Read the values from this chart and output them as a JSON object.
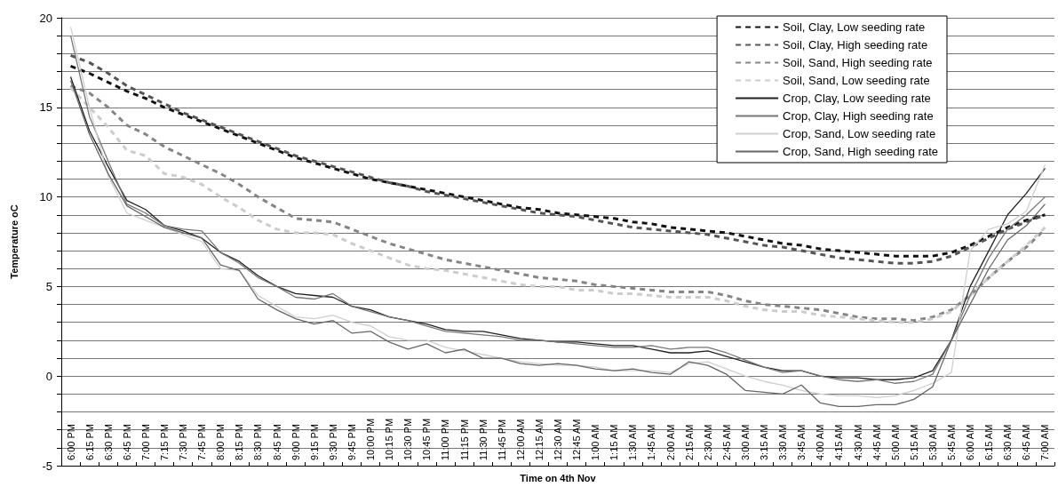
{
  "chart_data": {
    "type": "line",
    "xlabel": "Time on 4th Nov",
    "ylabel": "Temperature oC",
    "categories": [
      "6:00 PM",
      "6:15 PM",
      "6:30 PM",
      "6:45 PM",
      "7:00 PM",
      "7:15 PM",
      "7:30 PM",
      "7:45 PM",
      "8:00 PM",
      "8:15 PM",
      "8:30 PM",
      "8:45 PM",
      "9:00 PM",
      "9:15 PM",
      "9:30 PM",
      "9:45 PM",
      "10:00 PM",
      "10:15 PM",
      "10:30 PM",
      "10:45 PM",
      "11:00 PM",
      "11:15 PM",
      "11:30 PM",
      "11:45 PM",
      "12:00 AM",
      "12:15 AM",
      "12:30 AM",
      "12:45 AM",
      "1:00 AM",
      "1:15 AM",
      "1:30 AM",
      "1:45 AM",
      "2:00 AM",
      "2:15 AM",
      "2:30 AM",
      "2:45 AM",
      "3:00 AM",
      "3:15 AM",
      "3:30 AM",
      "3:45 AM",
      "4:00 AM",
      "4:15 AM",
      "4:30 AM",
      "4:45 AM",
      "5:00 AM",
      "5:15 AM",
      "5:30 AM",
      "5:45 AM",
      "6:00 AM",
      "6:15 AM",
      "6:30 AM",
      "6:45 AM",
      "7:00 AM"
    ],
    "series": [
      {
        "name": "Soil, Clay, Low seeding rate",
        "color": "#111111",
        "line_style": "dashed",
        "values": [
          17.3,
          16.9,
          16.4,
          15.9,
          15.5,
          15.0,
          14.6,
          14.2,
          13.8,
          13.4,
          13.0,
          12.6,
          12.2,
          11.9,
          11.6,
          11.3,
          11.0,
          10.8,
          10.6,
          10.4,
          10.2,
          10.0,
          9.8,
          9.6,
          9.4,
          9.3,
          9.1,
          9.0,
          8.9,
          8.8,
          8.6,
          8.5,
          8.3,
          8.2,
          8.1,
          8.0,
          7.8,
          7.6,
          7.4,
          7.3,
          7.1,
          7.0,
          6.9,
          6.8,
          6.7,
          6.7,
          6.7,
          6.9,
          7.3,
          7.8,
          8.3,
          8.7,
          9.0
        ]
      },
      {
        "name": "Soil, Clay, High seeding rate",
        "color": "#555555",
        "line_style": "dashed",
        "values": [
          17.9,
          17.5,
          16.9,
          16.2,
          15.7,
          15.2,
          14.7,
          14.3,
          13.9,
          13.5,
          13.1,
          12.7,
          12.3,
          12.0,
          11.7,
          11.4,
          11.1,
          10.8,
          10.6,
          10.3,
          10.1,
          9.9,
          9.7,
          9.5,
          9.3,
          9.1,
          9.0,
          8.9,
          8.7,
          8.5,
          8.3,
          8.2,
          8.1,
          8.0,
          7.9,
          7.7,
          7.5,
          7.3,
          7.2,
          7.0,
          6.8,
          6.6,
          6.5,
          6.4,
          6.3,
          6.3,
          6.4,
          6.7,
          7.2,
          7.7,
          8.2,
          8.6,
          9.0
        ]
      },
      {
        "name": "Soil, Sand, High seeding rate",
        "color": "#858585",
        "line_style": "dashed",
        "values": [
          16.2,
          15.8,
          15.0,
          14.0,
          13.5,
          12.8,
          12.3,
          11.8,
          11.3,
          10.7,
          10.0,
          9.4,
          8.8,
          8.7,
          8.6,
          8.2,
          7.8,
          7.4,
          7.1,
          6.8,
          6.5,
          6.3,
          6.1,
          5.9,
          5.7,
          5.5,
          5.4,
          5.3,
          5.1,
          5.0,
          4.9,
          4.8,
          4.7,
          4.7,
          4.7,
          4.5,
          4.2,
          4.0,
          3.9,
          3.8,
          3.7,
          3.5,
          3.3,
          3.2,
          3.2,
          3.1,
          3.3,
          3.7,
          4.5,
          5.5,
          6.4,
          7.2,
          8.2
        ]
      },
      {
        "name": "Soil, Sand, Low seeding rate",
        "color": "#cccccc",
        "line_style": "dashed",
        "values": [
          16.1,
          15.0,
          13.9,
          12.6,
          12.3,
          11.3,
          11.1,
          10.7,
          10.0,
          9.4,
          8.7,
          8.2,
          8.0,
          8.0,
          7.9,
          7.4,
          7.0,
          6.6,
          6.2,
          6.0,
          5.9,
          5.7,
          5.5,
          5.3,
          5.1,
          5.0,
          5.0,
          4.8,
          4.8,
          4.6,
          4.6,
          4.5,
          4.4,
          4.4,
          4.4,
          4.2,
          3.9,
          3.7,
          3.6,
          3.6,
          3.4,
          3.3,
          3.2,
          3.1,
          3.0,
          3.0,
          3.2,
          3.6,
          4.5,
          5.5,
          6.4,
          7.3,
          8.3
        ]
      },
      {
        "name": "Crop, Clay, Low seeding rate",
        "color": "#222222",
        "line_style": "solid",
        "values": [
          16.7,
          13.7,
          11.7,
          9.8,
          9.3,
          8.4,
          8.1,
          7.7,
          6.9,
          6.4,
          5.6,
          5.0,
          4.6,
          4.5,
          4.4,
          3.9,
          3.7,
          3.3,
          3.1,
          2.9,
          2.6,
          2.5,
          2.5,
          2.3,
          2.1,
          2.0,
          1.9,
          1.9,
          1.8,
          1.7,
          1.7,
          1.5,
          1.3,
          1.3,
          1.4,
          1.1,
          0.8,
          0.5,
          0.3,
          0.3,
          0.0,
          -0.1,
          -0.1,
          -0.2,
          -0.2,
          -0.1,
          0.3,
          2.0,
          5.0,
          7.0,
          9.0,
          10.2,
          11.6
        ]
      },
      {
        "name": "Crop, Clay, High seeding rate",
        "color": "#777777",
        "line_style": "solid",
        "values": [
          19.0,
          14.5,
          12.0,
          9.6,
          9.1,
          8.4,
          8.2,
          8.1,
          6.9,
          6.3,
          5.5,
          5.0,
          4.4,
          4.3,
          4.6,
          3.9,
          3.6,
          3.3,
          3.1,
          2.8,
          2.5,
          2.4,
          2.3,
          2.2,
          2.0,
          2.0,
          1.9,
          1.8,
          1.7,
          1.6,
          1.6,
          1.7,
          1.5,
          1.6,
          1.6,
          1.3,
          0.9,
          0.5,
          0.2,
          0.3,
          0.0,
          -0.2,
          -0.3,
          -0.2,
          -0.4,
          -0.3,
          0.1,
          2.0,
          4.5,
          6.6,
          8.2,
          9.0,
          10.0
        ]
      },
      {
        "name": "Crop, Sand, Low seeding rate",
        "color": "#cfcfcf",
        "line_style": "solid",
        "values": [
          19.5,
          15.0,
          11.2,
          9.1,
          8.7,
          8.3,
          7.9,
          7.5,
          6.0,
          5.9,
          4.5,
          3.9,
          3.3,
          3.2,
          3.4,
          3.0,
          2.8,
          2.2,
          2.0,
          2.0,
          1.6,
          1.4,
          1.2,
          1.0,
          0.8,
          0.7,
          0.6,
          0.6,
          0.5,
          0.3,
          0.3,
          0.3,
          0.2,
          0.7,
          0.8,
          0.4,
          0.0,
          -0.3,
          -0.5,
          -0.8,
          -1.0,
          -1.1,
          -1.1,
          -1.2,
          -1.1,
          -0.8,
          -0.4,
          0.2,
          7.0,
          8.2,
          8.5,
          9.2,
          11.8
        ]
      },
      {
        "name": "Crop, Sand, High seeding rate",
        "color": "#666666",
        "line_style": "solid",
        "values": [
          16.5,
          13.5,
          11.3,
          9.5,
          8.9,
          8.3,
          8.0,
          7.7,
          6.2,
          5.9,
          4.3,
          3.7,
          3.2,
          2.9,
          3.1,
          2.4,
          2.5,
          1.9,
          1.5,
          1.8,
          1.3,
          1.5,
          1.0,
          1.0,
          0.7,
          0.6,
          0.7,
          0.6,
          0.4,
          0.3,
          0.4,
          0.2,
          0.1,
          0.8,
          0.6,
          0.1,
          -0.8,
          -0.9,
          -1.0,
          -0.5,
          -1.5,
          -1.7,
          -1.7,
          -1.6,
          -1.6,
          -1.3,
          -0.6,
          2.0,
          4.0,
          6.0,
          7.6,
          8.4,
          9.6
        ]
      }
    ],
    "ylim": [
      -5,
      20
    ],
    "yticks": [
      -5,
      {
        "value": -4,
        "label": null
      },
      {
        "value": -3,
        "label": null
      },
      {
        "value": -2,
        "label": null
      },
      {
        "value": -1,
        "label": null
      },
      0,
      {
        "value": 1,
        "label": null
      },
      {
        "value": 2,
        "label": null
      },
      {
        "value": 3,
        "label": null
      },
      {
        "value": 4,
        "label": null
      },
      5,
      {
        "value": 6,
        "label": null
      },
      {
        "value": 7,
        "label": null
      },
      {
        "value": 8,
        "label": null
      },
      {
        "value": 9,
        "label": null
      },
      10,
      {
        "value": 11,
        "label": null
      },
      {
        "value": 12,
        "label": null
      },
      {
        "value": 13,
        "label": null
      },
      {
        "value": 14,
        "label": null
      },
      15,
      {
        "value": 16,
        "label": null
      },
      {
        "value": 17,
        "label": null
      },
      {
        "value": 18,
        "label": null
      },
      {
        "value": 19,
        "label": null
      },
      20
    ],
    "grid": "y",
    "legend": "top right",
    "marker": "none"
  }
}
